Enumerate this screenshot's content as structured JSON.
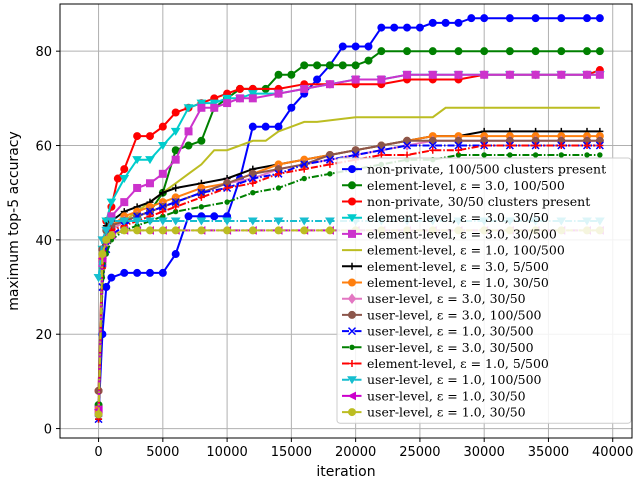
{
  "chart_data": {
    "type": "line",
    "title": "",
    "xlabel": "iteration",
    "ylabel": "maximum top-5 accuracy",
    "xlim": [
      -3000,
      41500
    ],
    "ylim": [
      -2,
      90
    ],
    "xticks": [
      0,
      5000,
      10000,
      15000,
      20000,
      25000,
      30000,
      35000,
      40000
    ],
    "yticks": [
      0,
      20,
      40,
      60,
      80
    ],
    "grid": true,
    "legend_position": "lower-right",
    "series": [
      {
        "name": "non-private, 100/500 clusters present",
        "color": "#0000ff",
        "marker": "circle",
        "dash": "solid",
        "x": [
          0,
          300,
          600,
          1000,
          2000,
          3000,
          4000,
          5000,
          6000,
          7000,
          8000,
          9000,
          10000,
          11000,
          12000,
          13000,
          14000,
          15000,
          16000,
          17000,
          18000,
          19000,
          20000,
          21000,
          22000,
          23000,
          24000,
          25000,
          26000,
          27000,
          28000,
          29000,
          30000,
          32000,
          34000,
          36000,
          38000,
          39000
        ],
        "y": [
          3,
          20,
          30,
          32,
          33,
          33,
          33,
          33,
          37,
          45,
          45,
          45,
          45,
          53,
          64,
          64,
          64,
          68,
          71,
          74,
          77,
          81,
          81,
          81,
          85,
          85,
          85,
          85,
          86,
          86,
          86,
          87,
          87,
          87,
          87,
          87,
          87,
          87
        ]
      },
      {
        "name": "element-level, ε = 3.0, 100/500",
        "color": "#008000",
        "marker": "circle",
        "dash": "solid",
        "x": [
          0,
          300,
          600,
          1000,
          2000,
          3000,
          4000,
          5000,
          6000,
          7000,
          8000,
          9000,
          10000,
          11000,
          12000,
          13000,
          14000,
          15000,
          16000,
          17000,
          18000,
          19000,
          20000,
          21000,
          22000,
          24000,
          26000,
          28000,
          30000,
          32000,
          34000,
          36000,
          38000,
          39000
        ],
        "y": [
          5,
          35,
          40,
          42,
          44,
          45,
          46,
          50,
          59,
          60,
          61,
          68,
          70,
          72,
          72,
          72,
          75,
          75,
          77,
          77,
          77,
          77,
          77,
          78,
          80,
          80,
          80,
          80,
          80,
          80,
          80,
          80,
          80,
          80
        ]
      },
      {
        "name": "non-private, 30/50 clusters present",
        "color": "#ff0000",
        "marker": "circle",
        "dash": "solid",
        "x": [
          0,
          300,
          600,
          1000,
          1500,
          2000,
          3000,
          4000,
          5000,
          6000,
          7000,
          8000,
          9000,
          10000,
          11000,
          12000,
          14000,
          16000,
          18000,
          20000,
          22000,
          24000,
          26000,
          28000,
          30000,
          32000,
          34000,
          36000,
          38000,
          39000
        ],
        "y": [
          8,
          38,
          44,
          47,
          53,
          55,
          62,
          62,
          64,
          67,
          68,
          69,
          70,
          71,
          72,
          72,
          72,
          73,
          73,
          73,
          73,
          74,
          74,
          74,
          75,
          75,
          75,
          75,
          75,
          76
        ]
      },
      {
        "name": "element-level, ε = 3.0, 30/50",
        "color": "#00cccc",
        "marker": "triangle-down",
        "dash": "solid",
        "x": [
          0,
          300,
          600,
          1000,
          2000,
          3000,
          4000,
          5000,
          6000,
          7000,
          8000,
          9000,
          10000,
          11000,
          12000,
          14000,
          16000,
          18000,
          20000,
          22000,
          24000,
          26000,
          28000,
          30000,
          32000,
          34000,
          36000,
          38000,
          39000
        ],
        "y": [
          32,
          38,
          44,
          48,
          53,
          57,
          57,
          60,
          63,
          68,
          69,
          69,
          70,
          70,
          71,
          71,
          72,
          73,
          74,
          74,
          75,
          75,
          75,
          75,
          75,
          75,
          75,
          75,
          75
        ]
      },
      {
        "name": "element-level, ε = 3.0, 30/500",
        "color": "#cc33cc",
        "marker": "square",
        "dash": "solid",
        "x": [
          0,
          300,
          600,
          1000,
          2000,
          3000,
          4000,
          5000,
          6000,
          7000,
          8000,
          9000,
          10000,
          11000,
          12000,
          14000,
          16000,
          18000,
          20000,
          22000,
          24000,
          26000,
          28000,
          30000,
          32000,
          34000,
          36000,
          38000,
          39000
        ],
        "y": [
          4,
          35,
          40,
          45,
          48,
          51,
          52,
          54,
          57,
          63,
          68,
          68,
          69,
          70,
          70,
          71,
          72,
          73,
          74,
          74,
          75,
          75,
          75,
          75,
          75,
          75,
          75,
          75,
          75
        ]
      },
      {
        "name": "element-level, ε = 1.0, 100/500",
        "color": "#bcbd22",
        "marker": "none",
        "dash": "solid",
        "x": [
          0,
          300,
          600,
          1000,
          2000,
          3000,
          4000,
          5000,
          6000,
          7000,
          8000,
          9000,
          10000,
          11000,
          12000,
          13000,
          14000,
          15000,
          16000,
          17000,
          20000,
          22000,
          26000,
          27000,
          30000,
          34000,
          39000
        ],
        "y": [
          3,
          30,
          38,
          42,
          44,
          46,
          48,
          50,
          52,
          54,
          56,
          59,
          59,
          60,
          61,
          61,
          63,
          64,
          65,
          65,
          66,
          66,
          66,
          68,
          68,
          68,
          68
        ]
      },
      {
        "name": "element-level, ε = 3.0, 5/500",
        "color": "#000000",
        "marker": "plus",
        "dash": "solid",
        "x": [
          0,
          300,
          600,
          1000,
          2000,
          3000,
          4000,
          5000,
          6000,
          8000,
          10000,
          12000,
          14000,
          16000,
          18000,
          20000,
          22000,
          24000,
          26000,
          28000,
          30000,
          32000,
          34000,
          36000,
          38000,
          39000
        ],
        "y": [
          2,
          38,
          43,
          44,
          46,
          47,
          48,
          50,
          51,
          52,
          53,
          55,
          56,
          57,
          58,
          59,
          60,
          61,
          62,
          62,
          63,
          63,
          63,
          63,
          63,
          63
        ]
      },
      {
        "name": "element-level, ε = 1.0, 30/50",
        "color": "#ff7f0e",
        "marker": "circle",
        "dash": "solid",
        "x": [
          0,
          300,
          600,
          1000,
          2000,
          3000,
          4000,
          5000,
          6000,
          8000,
          10000,
          12000,
          14000,
          16000,
          18000,
          20000,
          22000,
          24000,
          26000,
          28000,
          30000,
          32000,
          34000,
          36000,
          38000,
          39000
        ],
        "y": [
          4,
          36,
          40,
          43,
          45,
          46,
          47,
          48,
          49,
          51,
          52,
          54,
          56,
          57,
          58,
          59,
          60,
          61,
          62,
          62,
          62,
          62,
          62,
          62,
          62,
          62
        ]
      },
      {
        "name": "user-level, ε = 3.0, 30/50",
        "color": "#e377c2",
        "marker": "diamond",
        "dash": "solid",
        "x": [
          0,
          300,
          600,
          1000,
          2000,
          3000,
          4000,
          5000,
          6000,
          8000,
          10000,
          12000,
          14000,
          16000,
          18000,
          20000,
          22000,
          24000,
          26000,
          28000,
          30000,
          32000,
          34000,
          36000,
          38000,
          39000
        ],
        "y": [
          3,
          35,
          40,
          42,
          44,
          45,
          46,
          47,
          48,
          50,
          52,
          53,
          55,
          56,
          57,
          58,
          59,
          60,
          61,
          61,
          61,
          61,
          61,
          61,
          61,
          61
        ]
      },
      {
        "name": "user-level, ε = 3.0, 100/500",
        "color": "#8c564b",
        "marker": "circle",
        "dash": "solid",
        "x": [
          0,
          300,
          600,
          1000,
          2000,
          3000,
          4000,
          5000,
          6000,
          8000,
          10000,
          12000,
          14000,
          16000,
          18000,
          20000,
          22000,
          24000,
          26000,
          28000,
          30000,
          32000,
          34000,
          36000,
          38000,
          39000
        ],
        "y": [
          8,
          38,
          42,
          43,
          44,
          45,
          46,
          47,
          48,
          50,
          52,
          54,
          55,
          56,
          58,
          59,
          60,
          61,
          61,
          61,
          61,
          61,
          61,
          61,
          61,
          61
        ]
      },
      {
        "name": "user-level, ε = 1.0, 30/500",
        "color": "#0000ff",
        "marker": "x",
        "dash": "dashdot",
        "x": [
          0,
          300,
          600,
          1000,
          2000,
          3000,
          4000,
          5000,
          6000,
          8000,
          10000,
          12000,
          14000,
          16000,
          18000,
          20000,
          22000,
          24000,
          26000,
          28000,
          30000,
          32000,
          34000,
          36000,
          38000,
          39000
        ],
        "y": [
          2,
          30,
          38,
          41,
          43,
          45,
          46,
          47,
          48,
          50,
          51,
          53,
          54,
          56,
          57,
          58,
          59,
          60,
          60,
          60,
          60,
          60,
          60,
          60,
          60,
          60
        ]
      },
      {
        "name": "user-level, ε = 3.0, 30/500",
        "color": "#008000",
        "marker": "circle-small",
        "dash": "dashdot",
        "x": [
          0,
          300,
          600,
          1000,
          2000,
          3000,
          4000,
          5000,
          6000,
          8000,
          10000,
          12000,
          14000,
          16000,
          18000,
          20000,
          22000,
          24000,
          26000,
          28000,
          30000,
          32000,
          34000,
          36000,
          38000,
          39000
        ],
        "y": [
          3,
          32,
          37,
          40,
          42,
          43,
          44,
          45,
          46,
          47,
          48,
          50,
          51,
          53,
          54,
          55,
          56,
          57,
          57,
          58,
          58,
          58,
          58,
          58,
          58,
          58
        ]
      },
      {
        "name": "element-level, ε = 1.0, 5/500",
        "color": "#ff0000",
        "marker": "plus",
        "dash": "dashdot",
        "x": [
          0,
          300,
          600,
          1000,
          2000,
          3000,
          4000,
          5000,
          6000,
          8000,
          10000,
          12000,
          14000,
          16000,
          18000,
          20000,
          22000,
          24000,
          26000,
          28000,
          30000,
          32000,
          34000,
          36000,
          38000,
          39000
        ],
        "y": [
          2,
          34,
          40,
          42,
          43,
          44,
          45,
          46,
          47,
          49,
          51,
          52,
          54,
          55,
          56,
          57,
          58,
          58,
          59,
          59,
          60,
          60,
          60,
          60,
          60,
          60
        ]
      },
      {
        "name": "user-level, ε = 1.0, 100/500",
        "color": "#17becf",
        "marker": "triangle-down",
        "dash": "dashdot",
        "x": [
          0,
          300,
          600,
          1000,
          2000,
          3000,
          4000,
          5000,
          6000,
          8000,
          10000,
          12000,
          14000,
          16000,
          18000,
          20000,
          22000,
          24000,
          26000,
          28000,
          30000,
          32000,
          34000,
          36000,
          38000,
          39000
        ],
        "y": [
          32,
          40,
          42,
          44,
          44,
          44,
          44,
          44,
          44,
          44,
          44,
          44,
          44,
          44,
          44,
          44,
          44,
          44,
          44,
          44,
          44,
          44,
          44,
          44,
          44,
          44
        ]
      },
      {
        "name": "user-level, ε = 1.0, 30/50",
        "color": "#cc00cc",
        "marker": "triangle-left",
        "dash": "dashdot",
        "x": [
          0,
          300,
          600,
          1000,
          2000,
          3000,
          4000,
          5000,
          6000,
          8000,
          10000,
          12000,
          14000,
          16000,
          18000,
          20000,
          22000,
          24000,
          26000,
          28000,
          30000,
          32000,
          34000,
          36000,
          38000,
          39000
        ],
        "y": [
          4,
          36,
          40,
          41,
          42,
          42,
          42,
          42,
          42,
          42,
          42,
          42,
          42,
          42,
          42,
          42,
          42,
          42,
          42,
          42,
          42,
          42,
          42,
          42,
          42,
          42
        ]
      },
      {
        "name": "user-level, ε = 1.0, 30/50",
        "color": "#bcbd22",
        "marker": "circle",
        "dash": "dashdot",
        "x": [
          0,
          300,
          600,
          1000,
          2000,
          3000,
          4000,
          5000,
          6000,
          8000,
          10000,
          12000,
          14000,
          16000,
          18000,
          20000,
          22000,
          24000,
          26000,
          28000,
          30000,
          32000,
          34000,
          36000,
          38000,
          39000
        ],
        "y": [
          3,
          37,
          40,
          41,
          42,
          42,
          42,
          42,
          42,
          42,
          42,
          42,
          42,
          42,
          42,
          42,
          42,
          42,
          42,
          42,
          42,
          42,
          42,
          42,
          42,
          42
        ]
      }
    ]
  }
}
